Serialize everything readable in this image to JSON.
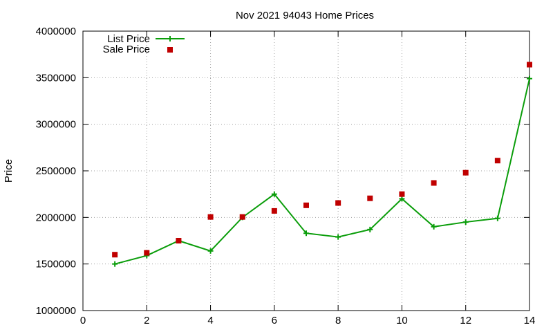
{
  "chart_data": {
    "type": "line",
    "title": "Nov 2021 94043 Home Prices",
    "xlabel": "",
    "ylabel": "Price",
    "xlim": [
      0,
      14
    ],
    "ylim": [
      1000000,
      4000000
    ],
    "x_ticks": [
      0,
      2,
      4,
      6,
      8,
      10,
      12,
      14
    ],
    "y_ticks": [
      1000000,
      1500000,
      2000000,
      2500000,
      3000000,
      3500000,
      4000000
    ],
    "grid": true,
    "legend_position": "top-left",
    "series": [
      {
        "name": "List Price",
        "style": "line+cross",
        "color": "#0a9d0a",
        "x": [
          1,
          2,
          3,
          4,
          5,
          6,
          7,
          8,
          9,
          10,
          11,
          12,
          13,
          14
        ],
        "y": [
          1500000,
          1590000,
          1750000,
          1640000,
          2000000,
          2250000,
          1830000,
          1790000,
          1870000,
          2200000,
          1900000,
          1950000,
          1990000,
          3490000
        ]
      },
      {
        "name": "Sale Price",
        "style": "square",
        "color": "#c00000",
        "x": [
          1,
          2,
          3,
          4,
          5,
          6,
          7,
          8,
          9,
          10,
          11,
          12,
          13,
          14
        ],
        "y": [
          1600000,
          1620000,
          1750000,
          2005000,
          2005000,
          2070000,
          2130000,
          2155000,
          2205000,
          2250000,
          2370000,
          2480000,
          2610000,
          3640000
        ]
      }
    ]
  }
}
